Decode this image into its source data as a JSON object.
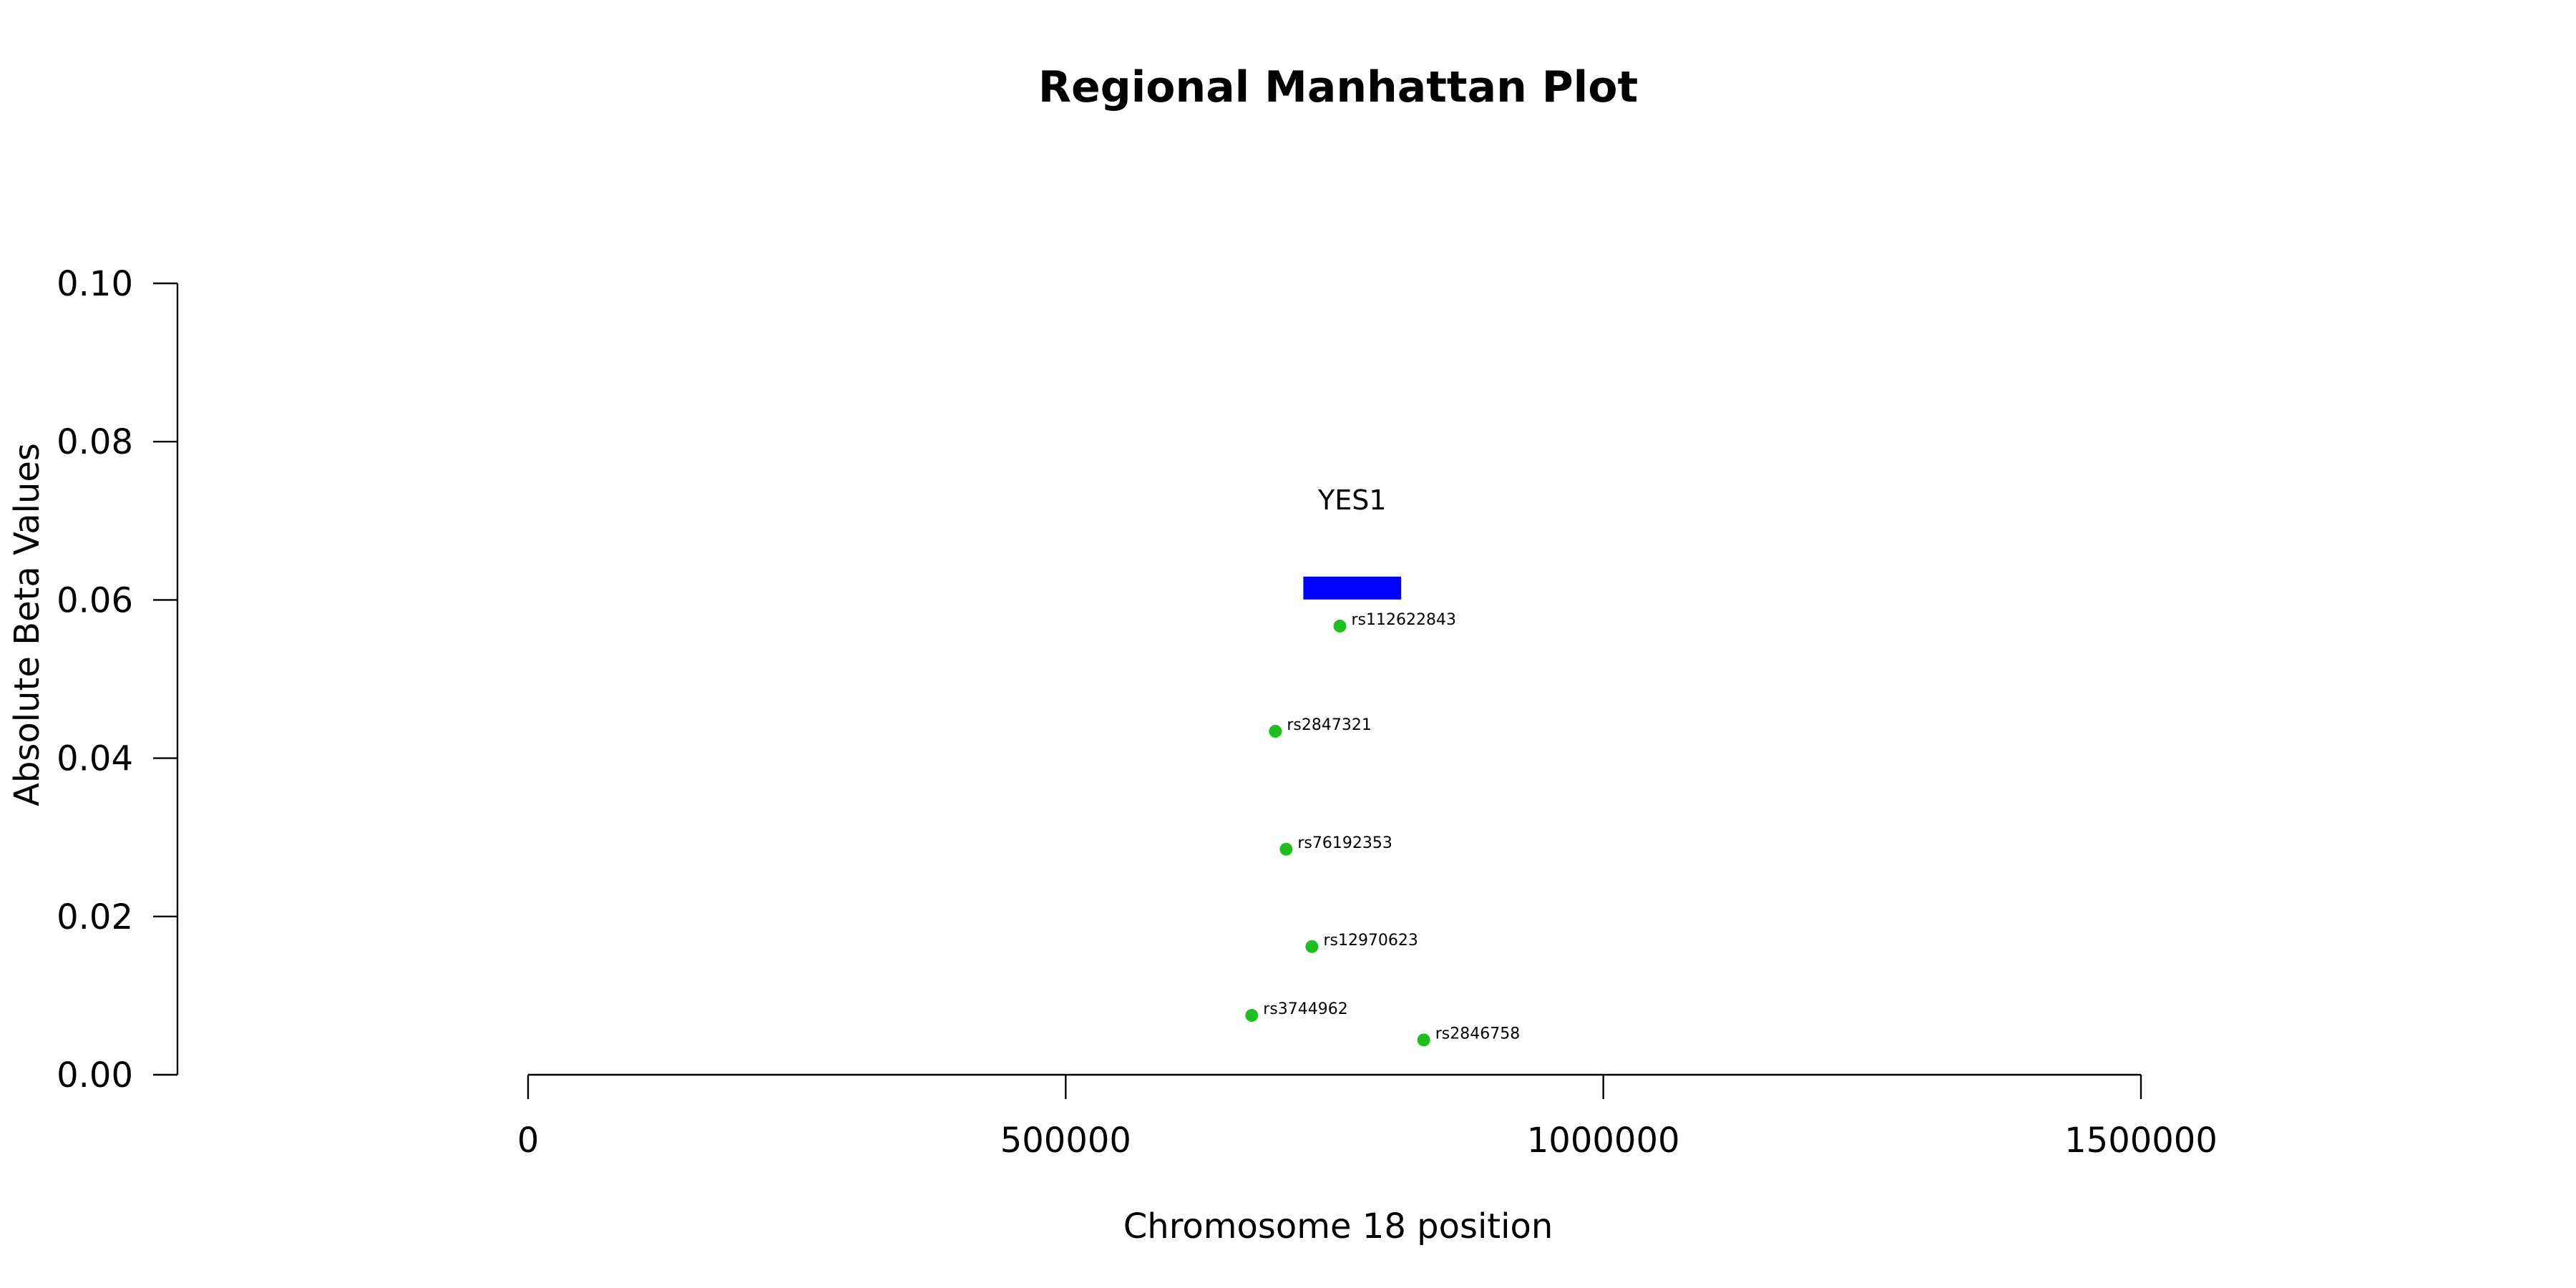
{
  "chart_data": {
    "type": "scatter",
    "title": "Regional Manhattan Plot",
    "xlabel": "Chromosome 18 position",
    "ylabel": "Absolute Beta Values",
    "xlim": [
      0,
      1500000
    ],
    "ylim": [
      0,
      0.1
    ],
    "x_ticks": [
      0,
      500000,
      1000000,
      1500000
    ],
    "x_tick_labels": [
      "0",
      "500000",
      "1000000",
      "1500000"
    ],
    "y_ticks": [
      0,
      0.02,
      0.04,
      0.06,
      0.08,
      0.1
    ],
    "y_tick_labels": [
      "0.00",
      "0.02",
      "0.04",
      "0.06",
      "0.08",
      "0.10"
    ],
    "grid": false,
    "point_color": "#1fbf1f",
    "points": [
      {
        "label": "rs112622843",
        "x": 755000,
        "y": 0.0567
      },
      {
        "label": "rs2847321",
        "x": 695000,
        "y": 0.0434
      },
      {
        "label": "rs76192353",
        "x": 705000,
        "y": 0.0285
      },
      {
        "label": "rs12970623",
        "x": 729000,
        "y": 0.0162
      },
      {
        "label": "rs3744962",
        "x": 673000,
        "y": 0.0075
      },
      {
        "label": "rs2846758",
        "x": 833000,
        "y": 0.0044
      }
    ],
    "genes": [
      {
        "name": "YES1",
        "start": 721000,
        "end": 812000,
        "y": 0.0615,
        "color": "#0000ff"
      }
    ]
  }
}
